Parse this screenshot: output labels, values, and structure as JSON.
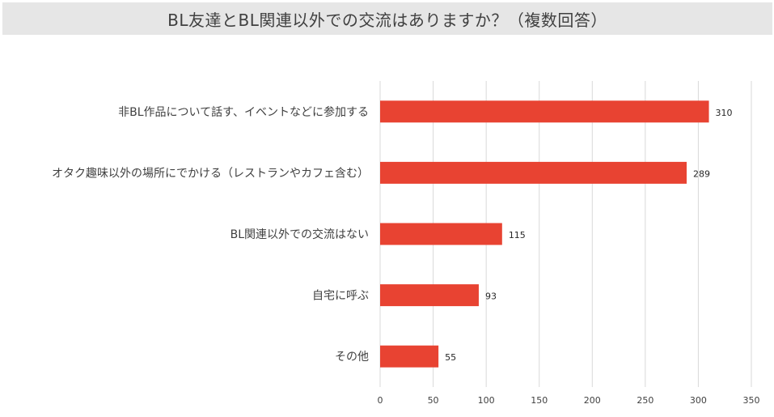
{
  "title": "BL友達とBL関連以外での交流はありますか？（複数回答）",
  "colors": {
    "bar": "#e84332",
    "grid": "#d9d9d9",
    "title_bg": "#e6e6e6",
    "text": "#404040"
  },
  "chart_data": {
    "type": "bar",
    "orientation": "horizontal",
    "title": "BL友達とBL関連以外での交流はありますか？（複数回答）",
    "categories": [
      "非BL作品について話す、イベントなどに参加する",
      "オタク趣味以外の場所にでかける（レストランやカフェ含む）",
      "BL関連以外での交流はない",
      "自宅に呼ぶ",
      "その他"
    ],
    "values": [
      310,
      289,
      115,
      93,
      55
    ],
    "xlim": [
      0,
      350
    ],
    "xticks": [
      0,
      50,
      100,
      150,
      200,
      250,
      300,
      350
    ],
    "xlabel": "",
    "ylabel": "",
    "grid": true,
    "legend": "none",
    "data_labels": true
  }
}
